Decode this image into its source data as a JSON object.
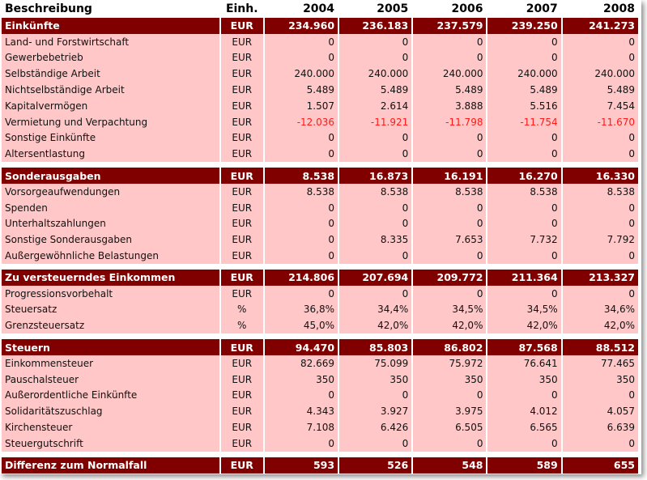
{
  "header": {
    "desc": "Beschreibung",
    "unit": "Einh.",
    "years": [
      "2004",
      "2005",
      "2006",
      "2007",
      "2008"
    ]
  },
  "colors": {
    "section_bg": "#800000",
    "row_bg": "#ffc7c7",
    "negative": "#ff1a1a"
  },
  "groups": [
    {
      "title": {
        "label": "Einkünfte",
        "unit": "EUR",
        "values": [
          "234.960",
          "236.183",
          "237.579",
          "239.250",
          "241.273"
        ]
      },
      "rows": [
        {
          "label": "Land- und Forstwirtschaft",
          "unit": "EUR",
          "values": [
            "0",
            "0",
            "0",
            "0",
            "0"
          ]
        },
        {
          "label": "Gewerbebetrieb",
          "unit": "EUR",
          "values": [
            "0",
            "0",
            "0",
            "0",
            "0"
          ]
        },
        {
          "label": "Selbständige Arbeit",
          "unit": "EUR",
          "values": [
            "240.000",
            "240.000",
            "240.000",
            "240.000",
            "240.000"
          ]
        },
        {
          "label": "Nichtselbständige Arbeit",
          "unit": "EUR",
          "values": [
            "5.489",
            "5.489",
            "5.489",
            "5.489",
            "5.489"
          ]
        },
        {
          "label": "Kapitalvermögen",
          "unit": "EUR",
          "values": [
            "1.507",
            "2.614",
            "3.888",
            "5.516",
            "7.454"
          ]
        },
        {
          "label": "Vermietung und Verpachtung",
          "unit": "EUR",
          "values": [
            "-12.036",
            "-11.921",
            "-11.798",
            "-11.754",
            "-11.670"
          ]
        },
        {
          "label": "Sonstige Einkünfte",
          "unit": "EUR",
          "values": [
            "0",
            "0",
            "0",
            "0",
            "0"
          ]
        },
        {
          "label": "Altersentlastung",
          "unit": "EUR",
          "values": [
            "0",
            "0",
            "0",
            "0",
            "0"
          ]
        }
      ]
    },
    {
      "title": {
        "label": "Sonderausgaben",
        "unit": "EUR",
        "values": [
          "8.538",
          "16.873",
          "16.191",
          "16.270",
          "16.330"
        ]
      },
      "rows": [
        {
          "label": "Vorsorgeaufwendungen",
          "unit": "EUR",
          "values": [
            "8.538",
            "8.538",
            "8.538",
            "8.538",
            "8.538"
          ]
        },
        {
          "label": "Spenden",
          "unit": "EUR",
          "values": [
            "0",
            "0",
            "0",
            "0",
            "0"
          ]
        },
        {
          "label": "Unterhaltszahlungen",
          "unit": "EUR",
          "values": [
            "0",
            "0",
            "0",
            "0",
            "0"
          ]
        },
        {
          "label": "Sonstige Sonderausgaben",
          "unit": "EUR",
          "values": [
            "0",
            "8.335",
            "7.653",
            "7.732",
            "7.792"
          ]
        },
        {
          "label": "Außergewöhnliche Belastungen",
          "unit": "EUR",
          "values": [
            "0",
            "0",
            "0",
            "0",
            "0"
          ]
        }
      ]
    },
    {
      "title": {
        "label": "Zu versteuerndes Einkommen",
        "unit": "EUR",
        "values": [
          "214.806",
          "207.694",
          "209.772",
          "211.364",
          "213.327"
        ]
      },
      "rows": [
        {
          "label": "Progressionsvorbehalt",
          "unit": "EUR",
          "values": [
            "0",
            "0",
            "0",
            "0",
            "0"
          ]
        },
        {
          "label": "Steuersatz",
          "unit": "%",
          "values": [
            "36,8%",
            "34,4%",
            "34,5%",
            "34,5%",
            "34,6%"
          ]
        },
        {
          "label": "Grenzsteuersatz",
          "unit": "%",
          "values": [
            "45,0%",
            "42,0%",
            "42,0%",
            "42,0%",
            "42,0%"
          ]
        }
      ]
    },
    {
      "title": {
        "label": "Steuern",
        "unit": "EUR",
        "values": [
          "94.470",
          "85.803",
          "86.802",
          "87.568",
          "88.512"
        ]
      },
      "rows": [
        {
          "label": "Einkommensteuer",
          "unit": "EUR",
          "values": [
            "82.669",
            "75.099",
            "75.972",
            "76.641",
            "77.465"
          ]
        },
        {
          "label": "Pauschalsteuer",
          "unit": "EUR",
          "values": [
            "350",
            "350",
            "350",
            "350",
            "350"
          ]
        },
        {
          "label": "Außerordentliche Einkünfte",
          "unit": "EUR",
          "values": [
            "0",
            "0",
            "0",
            "0",
            "0"
          ]
        },
        {
          "label": "Solidaritätszuschlag",
          "unit": "EUR",
          "values": [
            "4.343",
            "3.927",
            "3.975",
            "4.012",
            "4.057"
          ]
        },
        {
          "label": "Kirchensteuer",
          "unit": "EUR",
          "values": [
            "7.108",
            "6.426",
            "6.505",
            "6.565",
            "6.639"
          ]
        },
        {
          "label": "Steuergutschrift",
          "unit": "EUR",
          "values": [
            "0",
            "0",
            "0",
            "0",
            "0"
          ]
        }
      ]
    },
    {
      "title": {
        "label": "Differenz zum Normalfall",
        "unit": "EUR",
        "values": [
          "593",
          "526",
          "548",
          "589",
          "655"
        ]
      },
      "rows": []
    }
  ]
}
